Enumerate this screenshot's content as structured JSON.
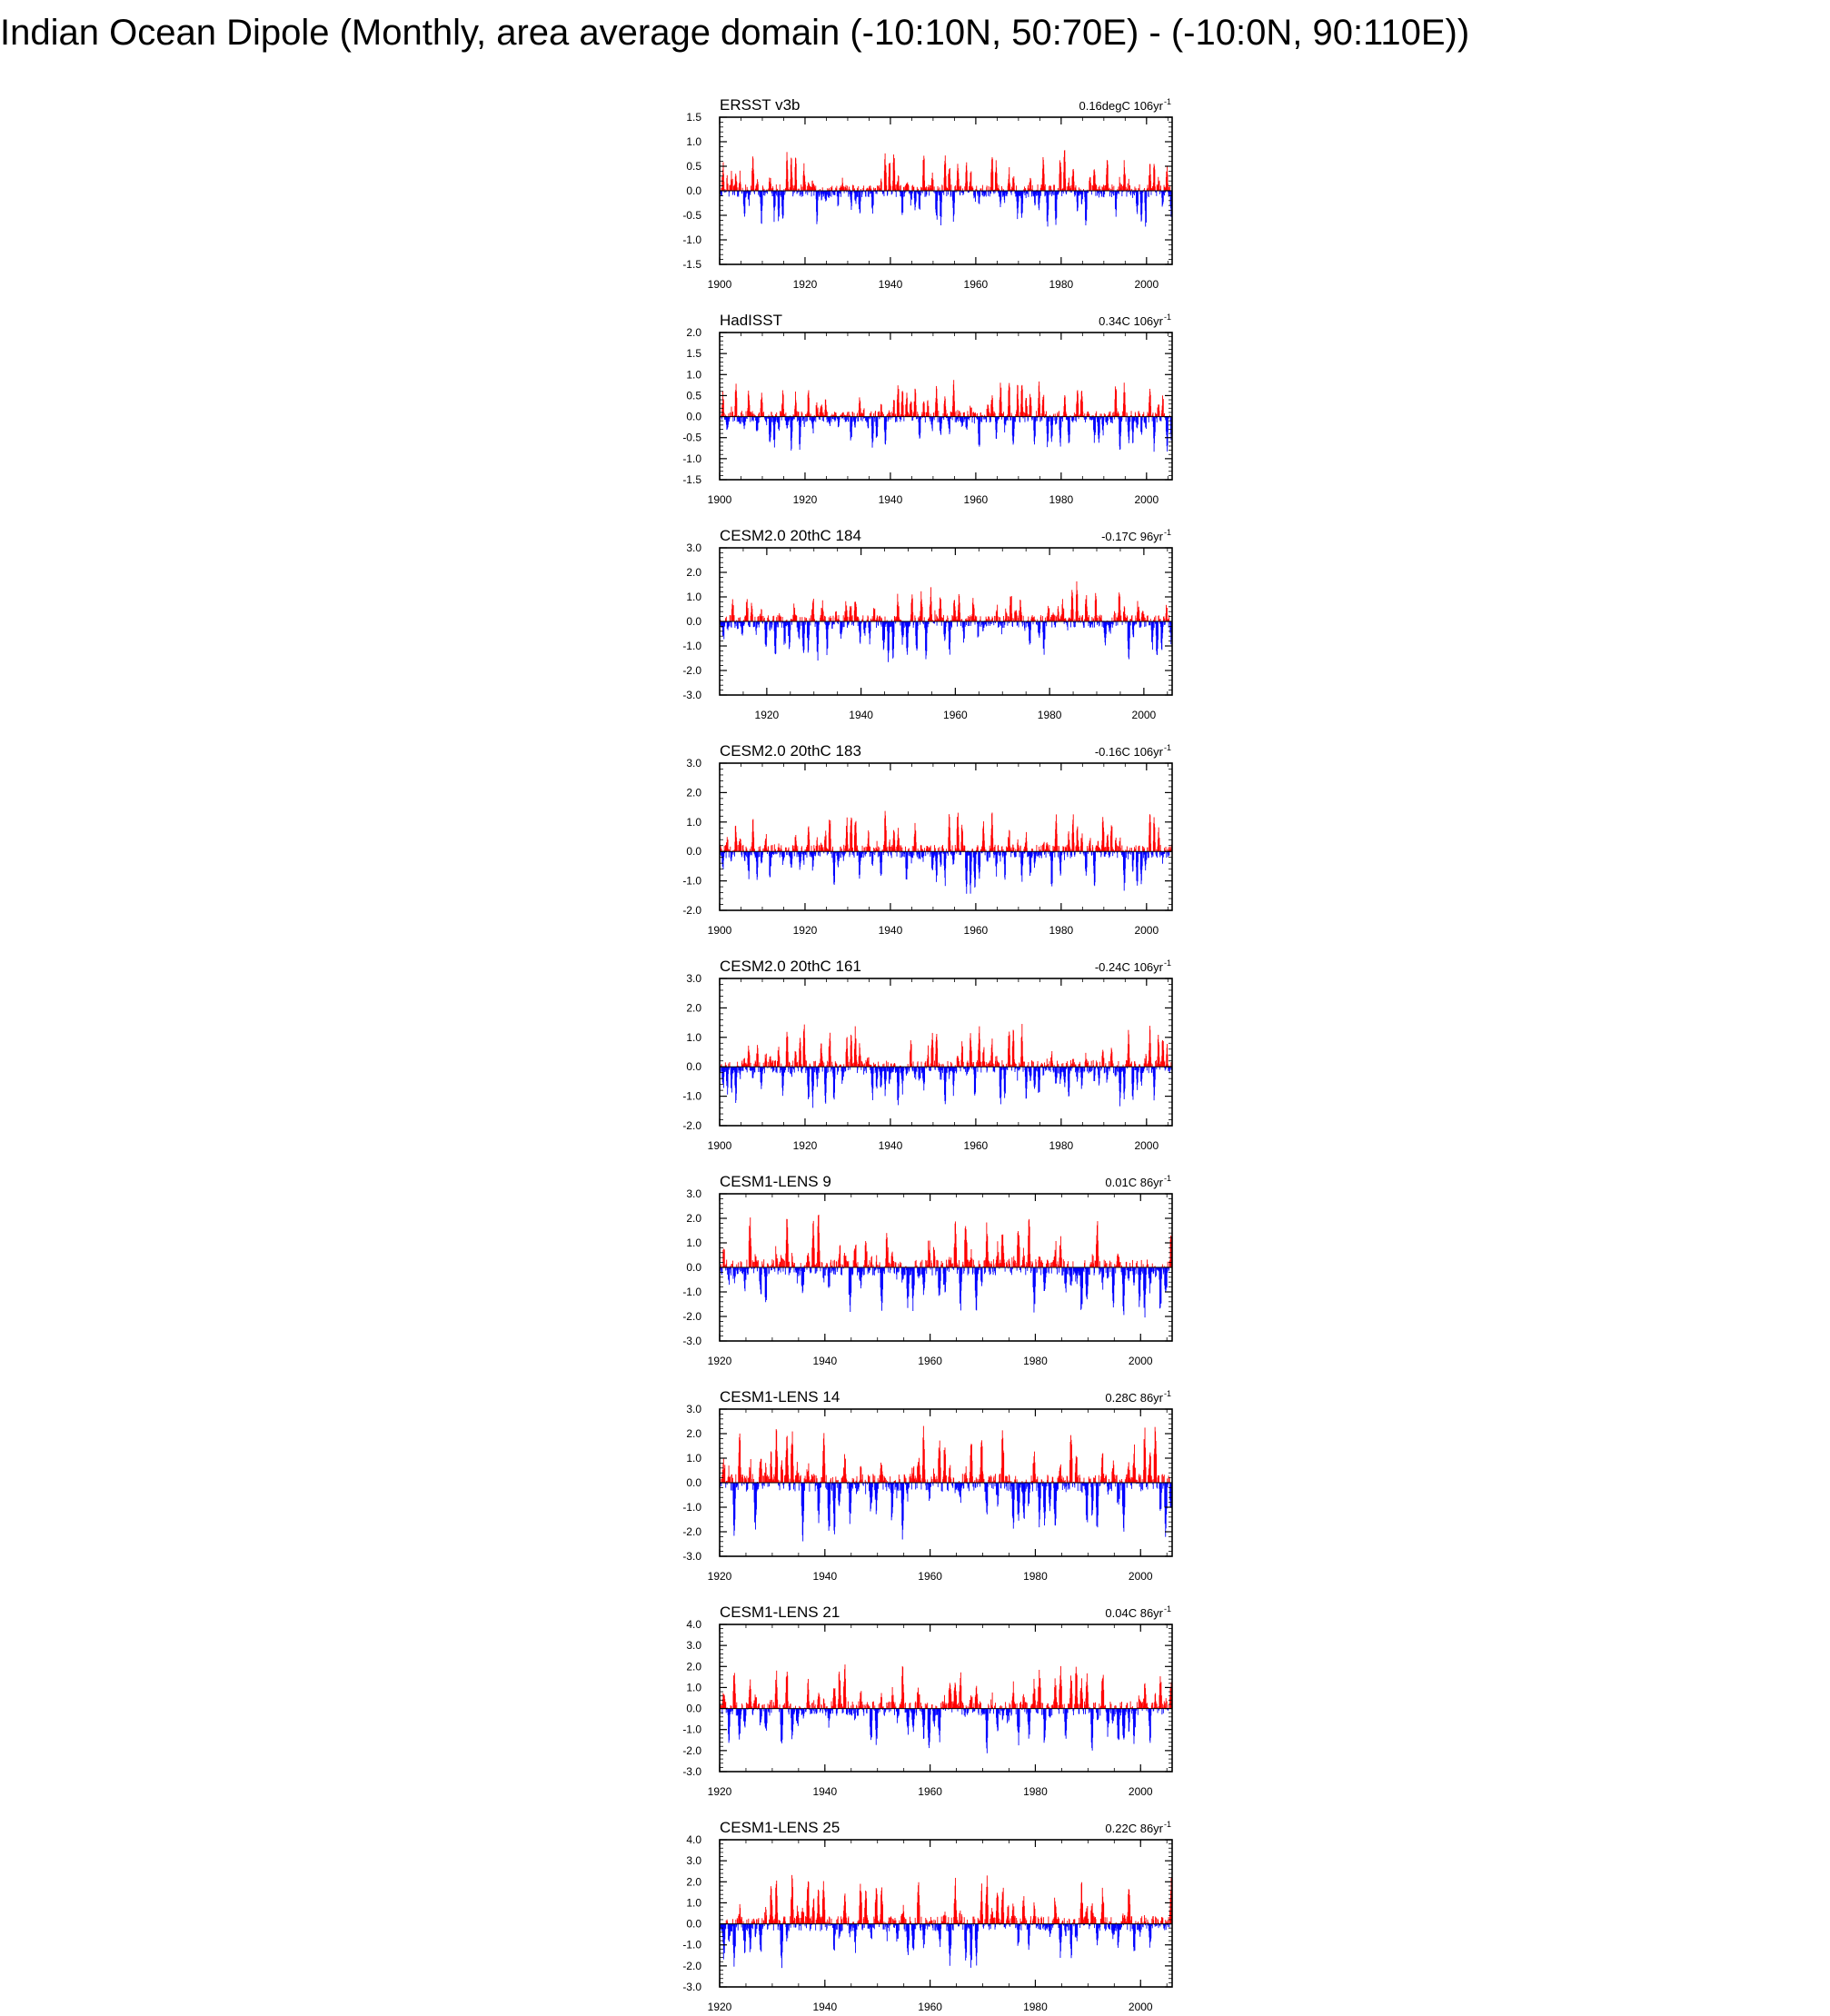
{
  "title": "Indian Ocean Dipole (Monthly, area average domain (-10:10N, 50:70E) - (-10:0N, 90:110E))",
  "colors": {
    "positive": "#ff0000",
    "negative": "#0000ff",
    "axis": "#000000"
  },
  "chart_data": [
    {
      "type": "bar",
      "name": "ERSST v3b",
      "trend": "0.16degC 106yr",
      "trend_sup": "-1",
      "xlim": [
        1900,
        2006
      ],
      "ylim": [
        -1.5,
        1.5
      ],
      "yticks": [
        "1.5",
        "1.0",
        "0.5",
        "0.0",
        "-0.5",
        "-1.0",
        "-1.5"
      ],
      "ytick_values": [
        1.5,
        1.0,
        0.5,
        0.0,
        -0.5,
        -1.0,
        -1.5
      ],
      "xticks": [
        "1900",
        "1920",
        "1940",
        "1960",
        "1980",
        "2000"
      ],
      "xtick_values": [
        1900,
        1920,
        1940,
        1960,
        1980,
        2000
      ],
      "series_desc": "monthly anomaly, red above zero, blue below",
      "amp": 0.75,
      "seed": 11
    },
    {
      "type": "bar",
      "name": "HadISST",
      "trend": "0.34C 106yr",
      "trend_sup": "-1",
      "xlim": [
        1900,
        2006
      ],
      "ylim": [
        -1.5,
        2.0
      ],
      "yticks": [
        "2.0",
        "1.5",
        "1.0",
        "0.5",
        "0.0",
        "-0.5",
        "-1.0",
        "-1.5"
      ],
      "ytick_values": [
        2.0,
        1.5,
        1.0,
        0.5,
        0.0,
        -0.5,
        -1.0,
        -1.5
      ],
      "xticks": [
        "1900",
        "1920",
        "1940",
        "1960",
        "1980",
        "2000"
      ],
      "xtick_values": [
        1900,
        1920,
        1940,
        1960,
        1980,
        2000
      ],
      "amp": 0.8,
      "seed": 23
    },
    {
      "type": "bar",
      "name": "CESM2.0 20thC 184",
      "trend": "-0.17C 96yr",
      "trend_sup": "-1",
      "xlim": [
        1910,
        2006
      ],
      "ylim": [
        -3.0,
        3.0
      ],
      "yticks": [
        "3.0",
        "2.0",
        "1.0",
        "0.0",
        "-1.0",
        "-2.0",
        "-3.0"
      ],
      "ytick_values": [
        3.0,
        2.0,
        1.0,
        0.0,
        -1.0,
        -2.0,
        -3.0
      ],
      "xticks": [
        "1920",
        "1940",
        "1960",
        "1980",
        "2000"
      ],
      "xtick_values": [
        1920,
        1940,
        1960,
        1980,
        2000
      ],
      "amp": 1.5,
      "seed": 37
    },
    {
      "type": "bar",
      "name": "CESM2.0 20thC 183",
      "trend": "-0.16C 106yr",
      "trend_sup": "-1",
      "xlim": [
        1900,
        2006
      ],
      "ylim": [
        -2.0,
        3.0
      ],
      "yticks": [
        "3.0",
        "2.0",
        "1.0",
        "0.0",
        "-1.0",
        "-2.0"
      ],
      "ytick_values": [
        3.0,
        2.0,
        1.0,
        0.0,
        -1.0,
        -2.0
      ],
      "xticks": [
        "1900",
        "1920",
        "1940",
        "1960",
        "1980",
        "2000"
      ],
      "xtick_values": [
        1900,
        1920,
        1940,
        1960,
        1980,
        2000
      ],
      "amp": 1.3,
      "seed": 41
    },
    {
      "type": "bar",
      "name": "CESM2.0 20thC 161",
      "trend": "-0.24C 106yr",
      "trend_sup": "-1",
      "xlim": [
        1900,
        2006
      ],
      "ylim": [
        -2.0,
        3.0
      ],
      "yticks": [
        "3.0",
        "2.0",
        "1.0",
        "0.0",
        "-1.0",
        "-2.0"
      ],
      "ytick_values": [
        3.0,
        2.0,
        1.0,
        0.0,
        -1.0,
        -2.0
      ],
      "xticks": [
        "1900",
        "1920",
        "1940",
        "1960",
        "1980",
        "2000"
      ],
      "xtick_values": [
        1900,
        1920,
        1940,
        1960,
        1980,
        2000
      ],
      "amp": 1.3,
      "seed": 53
    },
    {
      "type": "bar",
      "name": "CESM1-LENS 9",
      "trend": "0.01C 86yr",
      "trend_sup": "-1",
      "xlim": [
        1920,
        2006
      ],
      "ylim": [
        -3.0,
        3.0
      ],
      "yticks": [
        "3.0",
        "2.0",
        "1.0",
        "0.0",
        "-1.0",
        "-2.0",
        "-3.0"
      ],
      "ytick_values": [
        3.0,
        2.0,
        1.0,
        0.0,
        -1.0,
        -2.0,
        -3.0
      ],
      "xticks": [
        "1920",
        "1940",
        "1960",
        "1980",
        "2000"
      ],
      "xtick_values": [
        1920,
        1940,
        1960,
        1980,
        2000
      ],
      "amp": 1.9,
      "seed": 67
    },
    {
      "type": "bar",
      "name": "CESM1-LENS 14",
      "trend": "0.28C 86yr",
      "trend_sup": "-1",
      "xlim": [
        1920,
        2006
      ],
      "ylim": [
        -3.0,
        3.0
      ],
      "yticks": [
        "3.0",
        "2.0",
        "1.0",
        "0.0",
        "-1.0",
        "-2.0",
        "-3.0"
      ],
      "ytick_values": [
        3.0,
        2.0,
        1.0,
        0.0,
        -1.0,
        -2.0,
        -3.0
      ],
      "xticks": [
        "1920",
        "1940",
        "1960",
        "1980",
        "2000"
      ],
      "xtick_values": [
        1920,
        1940,
        1960,
        1980,
        2000
      ],
      "amp": 2.1,
      "seed": 71
    },
    {
      "type": "bar",
      "name": "CESM1-LENS 21",
      "trend": "0.04C 86yr",
      "trend_sup": "-1",
      "xlim": [
        1920,
        2006
      ],
      "ylim": [
        -3.0,
        4.0
      ],
      "yticks": [
        "4.0",
        "3.0",
        "2.0",
        "1.0",
        "0.0",
        "-1.0",
        "-2.0",
        "-3.0"
      ],
      "ytick_values": [
        4.0,
        3.0,
        2.0,
        1.0,
        0.0,
        -1.0,
        -2.0,
        -3.0
      ],
      "xticks": [
        "1920",
        "1940",
        "1960",
        "1980",
        "2000"
      ],
      "xtick_values": [
        1920,
        1940,
        1960,
        1980,
        2000
      ],
      "amp": 2.0,
      "seed": 83
    },
    {
      "type": "bar",
      "name": "CESM1-LENS 25",
      "trend": "0.22C 86yr",
      "trend_sup": "-1",
      "xlim": [
        1920,
        2006
      ],
      "ylim": [
        -3.0,
        4.0
      ],
      "yticks": [
        "4.0",
        "3.0",
        "2.0",
        "1.0",
        "0.0",
        "-1.0",
        "-2.0",
        "-3.0"
      ],
      "ytick_values": [
        4.0,
        3.0,
        2.0,
        1.0,
        0.0,
        -1.0,
        -2.0,
        -3.0
      ],
      "xticks": [
        "1920",
        "1940",
        "1960",
        "1980",
        "2000"
      ],
      "xtick_values": [
        1920,
        1940,
        1960,
        1980,
        2000
      ],
      "amp": 2.1,
      "seed": 97
    }
  ]
}
